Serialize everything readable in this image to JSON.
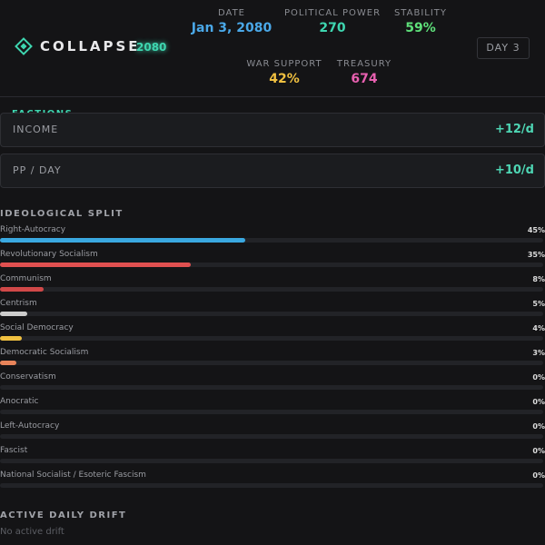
{
  "header": {
    "logo": "COLLAPSE",
    "year": "2080",
    "day_button": "DAY 3",
    "stats": [
      {
        "label": "DATE",
        "value": "Jan 3, 2080",
        "color": "#4aa8e8"
      },
      {
        "label": "POLITICAL POWER",
        "value": "270",
        "color": "#3ed6b0"
      },
      {
        "label": "STABILITY",
        "value": "59%",
        "color": "#5ee07a"
      },
      {
        "label": "WAR SUPPORT",
        "value": "42%",
        "color": "#f0c040"
      },
      {
        "label": "TREASURY",
        "value": "674",
        "color": "#e860b0"
      }
    ]
  },
  "factions_title": "FACTIONS",
  "cards": [
    {
      "label": "INCOME",
      "value": "+12/d"
    },
    {
      "label": "PP / DAY",
      "value": "+10/d"
    }
  ],
  "ideology": {
    "title": "IDEOLOGICAL SPLIT",
    "items": [
      {
        "name": "Right-Autocracy",
        "value": 45,
        "label": "45%",
        "color": "#3aa8e0"
      },
      {
        "name": "Revolutionary Socialism",
        "value": 35,
        "label": "35%",
        "color": "#e05050"
      },
      {
        "name": "Communism",
        "value": 8,
        "label": "8%",
        "color": "#d04848"
      },
      {
        "name": "Centrism",
        "value": 5,
        "label": "5%",
        "color": "#cccccc"
      },
      {
        "name": "Social Democracy",
        "value": 4,
        "label": "4%",
        "color": "#f0c040"
      },
      {
        "name": "Democratic Socialism",
        "value": 3,
        "label": "3%",
        "color": "#e8845a"
      },
      {
        "name": "Conservatism",
        "value": 0,
        "label": "0%",
        "color": "#888888"
      },
      {
        "name": "Anocratic",
        "value": 0,
        "label": "0%",
        "color": "#888888"
      },
      {
        "name": "Left-Autocracy",
        "value": 0,
        "label": "0%",
        "color": "#888888"
      },
      {
        "name": "Fascist",
        "value": 0,
        "label": "0%",
        "color": "#888888"
      },
      {
        "name": "National Socialist / Esoteric Fascism",
        "value": 0,
        "label": "0%",
        "color": "#888888"
      }
    ]
  },
  "drift": {
    "title": "ACTIVE DAILY DRIFT",
    "text": "No active drift"
  }
}
